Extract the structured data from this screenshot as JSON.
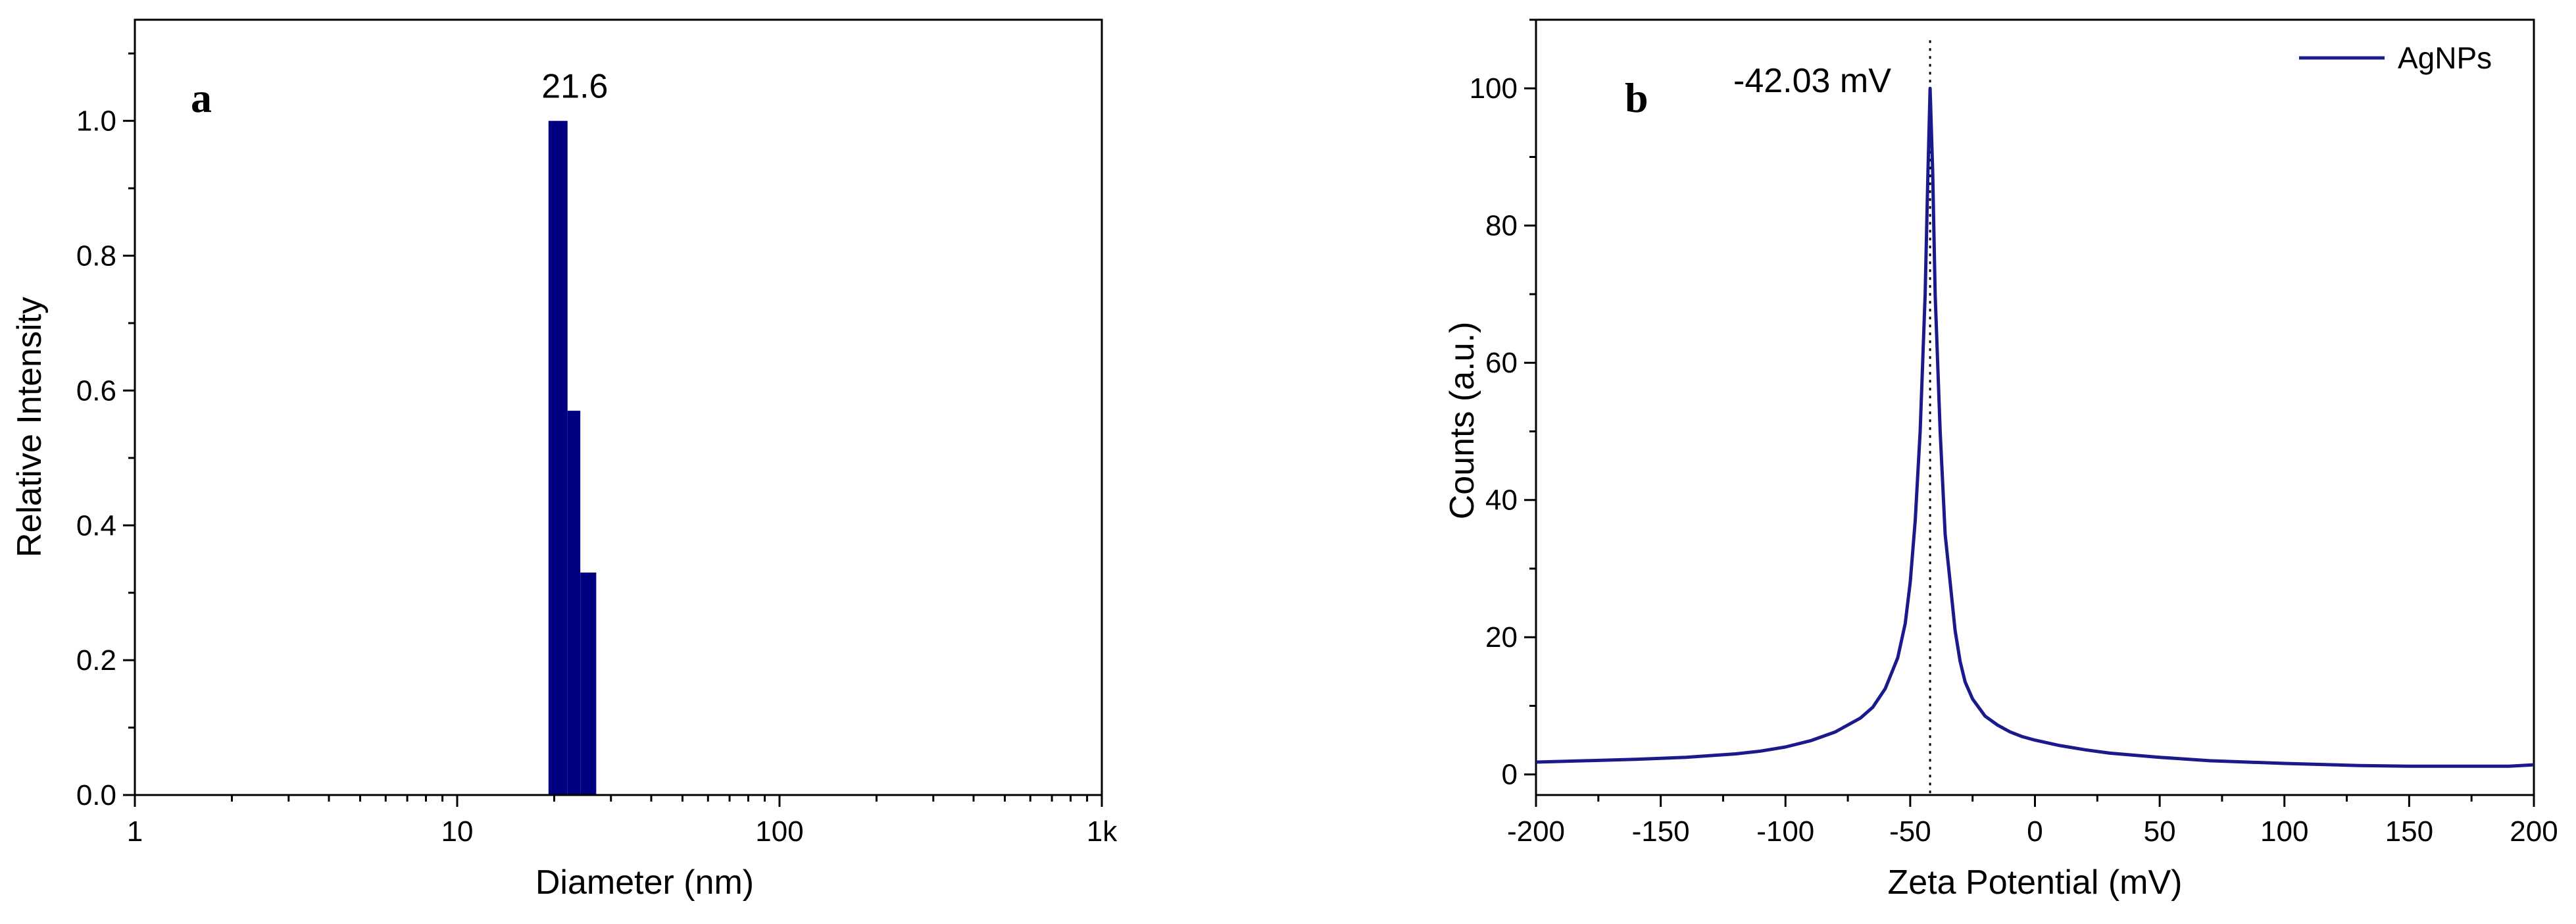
{
  "chart_data": [
    {
      "type": "bar",
      "panel_label": "a",
      "xlabel": "Diameter (nm)",
      "ylabel": "Relative Intensity",
      "xscale": "log",
      "xlim": [
        1,
        1000
      ],
      "ylim": [
        0,
        1.15
      ],
      "xticks": [
        1,
        10,
        100,
        1000
      ],
      "xtick_labels": [
        "1",
        "10",
        "100",
        "1k"
      ],
      "yticks": [
        0.0,
        0.2,
        0.4,
        0.6,
        0.8,
        1.0
      ],
      "ytick_labels": [
        "0.0",
        "0.2",
        "0.4",
        "0.6",
        "0.8",
        "1.0"
      ],
      "bars": [
        {
          "x_start": 19.2,
          "x_end": 22.0,
          "value": 1.0
        },
        {
          "x_start": 22.0,
          "x_end": 24.1,
          "value": 0.57
        },
        {
          "x_start": 24.1,
          "x_end": 27.0,
          "value": 0.33
        }
      ],
      "bar_color": "#000080",
      "peak_label": {
        "text": "21.6",
        "x": 21.6,
        "y": 1.0
      },
      "grid": false
    },
    {
      "type": "line",
      "panel_label": "b",
      "xlabel": "Zeta Potential (mV)",
      "ylabel": "Counts (a.u.)",
      "xlim": [
        -200,
        200
      ],
      "ylim": [
        -3,
        110
      ],
      "xticks": [
        -200,
        -150,
        -100,
        -50,
        0,
        50,
        100,
        150,
        200
      ],
      "xtick_labels": [
        "-200",
        "-150",
        "-100",
        "-50",
        "0",
        "50",
        "100",
        "150",
        "200"
      ],
      "yticks": [
        0,
        20,
        40,
        60,
        80,
        100
      ],
      "ytick_labels": [
        "0",
        "20",
        "40",
        "60",
        "80",
        "100"
      ],
      "series": [
        {
          "name": "AgNPs",
          "color": "#1a1a8c",
          "x": [
            -200,
            -180,
            -160,
            -140,
            -120,
            -110,
            -100,
            -90,
            -80,
            -70,
            -65,
            -60,
            -55,
            -52,
            -50,
            -48,
            -46,
            -44,
            -43,
            -42.03,
            -41,
            -40,
            -38,
            -36,
            -34,
            -32,
            -30,
            -28,
            -25,
            -20,
            -15,
            -10,
            -5,
            0,
            10,
            20,
            30,
            50,
            70,
            100,
            130,
            150,
            170,
            190,
            200
          ],
          "y": [
            1.8,
            2.0,
            2.2,
            2.5,
            3.0,
            3.4,
            4.0,
            4.9,
            6.2,
            8.2,
            9.8,
            12.5,
            17.0,
            22.0,
            28.0,
            37.0,
            50.0,
            70.0,
            86.0,
            100.0,
            88.0,
            70.0,
            50.0,
            35.0,
            28.0,
            21.0,
            16.5,
            13.5,
            11.0,
            8.5,
            7.2,
            6.2,
            5.5,
            5.0,
            4.2,
            3.6,
            3.1,
            2.5,
            2.0,
            1.6,
            1.3,
            1.2,
            1.2,
            1.2,
            1.4
          ]
        }
      ],
      "peak_marker": {
        "x": -42.03,
        "style": "dotted"
      },
      "annotation": "-42.03 mV",
      "legend": {
        "position": "top-right"
      },
      "grid": false
    }
  ]
}
